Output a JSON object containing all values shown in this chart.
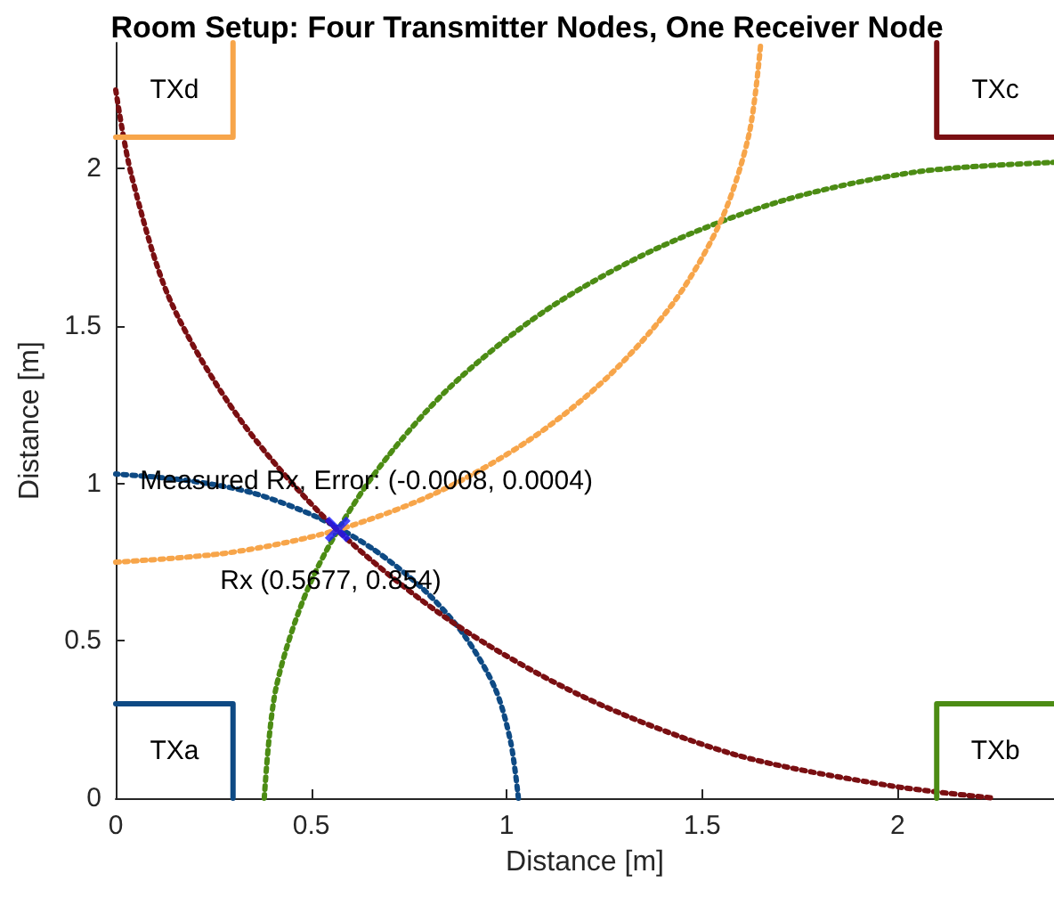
{
  "chart_data": {
    "type": "line",
    "title": "Room Setup: Four Transmitter Nodes, One Receiver Node",
    "xlabel": "Distance [m]",
    "ylabel": "Distance [m]",
    "xlim": [
      0,
      2.4
    ],
    "ylim": [
      0,
      2.4
    ],
    "xticks": [
      0,
      0.5,
      1,
      1.5,
      2
    ],
    "yticks": [
      0,
      0.5,
      1,
      1.5,
      2
    ],
    "grid": false,
    "legend": false,
    "marker": "none",
    "series": [
      {
        "color": "#0e4a84",
        "line_style": "dotted",
        "x": [
          1.03,
          1.01,
          0.97,
          0.89,
          0.79,
          0.66,
          0.52,
          0.35,
          0.18,
          0
        ],
        "values": [
          0,
          0.18,
          0.35,
          0.52,
          0.66,
          0.79,
          0.89,
          0.97,
          1.01,
          1.03
        ]
      },
      {
        "color": "#4c8c14",
        "line_style": "dotted",
        "x": [
          0.38,
          0.41,
          0.5,
          0.65,
          0.85,
          1.1,
          1.39,
          1.71,
          2.05,
          2.4
        ],
        "values": [
          0,
          0.35,
          0.69,
          1.01,
          1.3,
          1.55,
          1.75,
          1.9,
          1.99,
          2.02
        ]
      },
      {
        "color": "#f7a54a",
        "line_style": "dotted",
        "x": [
          0,
          0.29,
          0.56,
          0.82,
          1.06,
          1.26,
          1.43,
          1.55,
          1.62,
          1.65
        ],
        "values": [
          0.75,
          0.78,
          0.85,
          0.97,
          1.14,
          1.34,
          1.58,
          1.84,
          2.11,
          2.4
        ]
      },
      {
        "color": "#7a0f12",
        "line_style": "dotted",
        "x": [
          0,
          0.04,
          0.14,
          0.32,
          0.56,
          0.86,
          1.2,
          1.58,
          1.98,
          2.25
        ],
        "values": [
          2.25,
          1.98,
          1.58,
          1.2,
          0.86,
          0.56,
          0.32,
          0.14,
          0.04,
          0
        ]
      },
      {
        "name": "TXa",
        "color": "#0e4a84",
        "line_style": "solid",
        "x": [
          0,
          0.3,
          0.3
        ],
        "values": [
          0.3,
          0.3,
          0
        ]
      },
      {
        "name": "TXb",
        "color": "#4c8c14",
        "line_style": "solid",
        "x": [
          2.4,
          2.1,
          2.1
        ],
        "values": [
          0.3,
          0.3,
          0
        ]
      },
      {
        "name": "TXc",
        "color": "#7a0f12",
        "line_style": "solid",
        "x": [
          2.4,
          2.1,
          2.1
        ],
        "values": [
          2.1,
          2.1,
          2.4
        ]
      },
      {
        "name": "TXd",
        "color": "#f7a54a",
        "line_style": "solid",
        "x": [
          0,
          0.3,
          0.3
        ],
        "values": [
          2.1,
          2.1,
          2.4
        ]
      },
      {
        "type": "scatter",
        "marker": "cross",
        "color": "#1a1aff",
        "x": [
          0.5677
        ],
        "values": [
          0.854
        ]
      }
    ],
    "annotations": [
      {
        "text": "Measured Rx, Error: (-0.0008, 0.0004)",
        "x": 0.5677,
        "y": 0.854
      },
      {
        "text": "Rx (0.5677, 0.854)",
        "x": 0.5677,
        "y": 0.854
      }
    ]
  }
}
